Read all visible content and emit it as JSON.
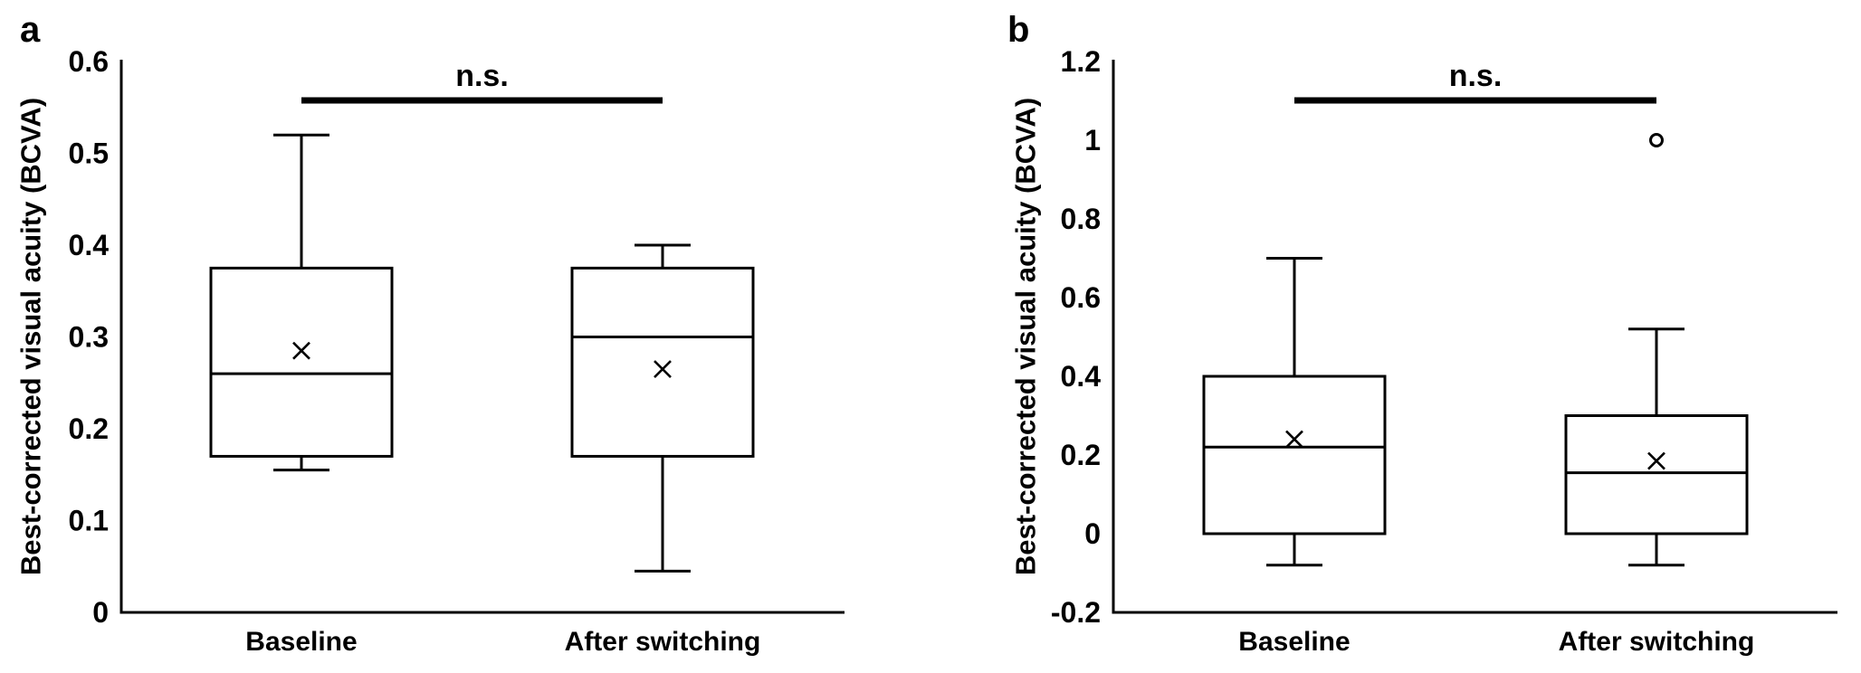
{
  "figure": {
    "panels": [
      {
        "label": "a"
      },
      {
        "label": "b"
      }
    ]
  },
  "colors": {
    "ink": "#000000",
    "background": "#ffffff"
  },
  "chart_data": [
    {
      "type": "boxplot",
      "panel": "a",
      "title": "",
      "xlabel": "",
      "ylabel": "Best-corrected visual acuity (BCVA)",
      "ylim": [
        0,
        0.6
      ],
      "yticks": [
        0,
        0.1,
        0.2,
        0.3,
        0.4,
        0.5,
        0.6
      ],
      "ytick_labels": [
        "0",
        "0.1",
        "0.2",
        "0.3",
        "0.4",
        "0.5",
        "0.6"
      ],
      "grid": false,
      "legend": false,
      "annotation": "n.s.",
      "categories": [
        "Baseline",
        "After switching"
      ],
      "series": [
        {
          "category": "Baseline",
          "whisker_low": 0.155,
          "q1": 0.17,
          "median": 0.26,
          "q3": 0.375,
          "whisker_high": 0.52,
          "mean": 0.285,
          "outliers": []
        },
        {
          "category": "After switching",
          "whisker_low": 0.045,
          "q1": 0.17,
          "median": 0.3,
          "q3": 0.375,
          "whisker_high": 0.4,
          "mean": 0.265,
          "outliers": []
        }
      ]
    },
    {
      "type": "boxplot",
      "panel": "b",
      "title": "",
      "xlabel": "",
      "ylabel": "Best-corrected visual acuity (BCVA)",
      "ylim": [
        -0.2,
        1.2
      ],
      "yticks": [
        -0.2,
        0,
        0.2,
        0.4,
        0.6,
        0.8,
        1,
        1.2
      ],
      "ytick_labels": [
        "-0.2",
        "0",
        "0.2",
        "0.4",
        "0.6",
        "0.8",
        "1",
        "1.2"
      ],
      "grid": false,
      "legend": false,
      "annotation": "n.s.",
      "categories": [
        "Baseline",
        "After switching"
      ],
      "series": [
        {
          "category": "Baseline",
          "whisker_low": -0.08,
          "q1": 0,
          "median": 0.22,
          "q3": 0.4,
          "whisker_high": 0.7,
          "mean": 0.24,
          "outliers": []
        },
        {
          "category": "After switching",
          "whisker_low": -0.08,
          "q1": 0,
          "median": 0.155,
          "q3": 0.3,
          "whisker_high": 0.52,
          "mean": 0.185,
          "outliers": [
            1.0
          ]
        }
      ]
    }
  ]
}
